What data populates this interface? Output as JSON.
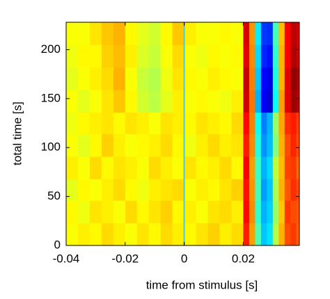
{
  "chart_data": {
    "type": "heatmap",
    "colormap": "jet",
    "clim": [
      0,
      1
    ],
    "xlabel": "time from stimulus [s]",
    "ylabel": "total time [s]",
    "xlim": [
      -0.04,
      0.039
    ],
    "ylim": [
      0,
      228
    ],
    "xticks": [
      -0.04,
      -0.02,
      0,
      0.02
    ],
    "yticks": [
      0,
      50,
      100,
      150,
      200
    ],
    "stimulus_line": {
      "x": 0,
      "color": "#5fd0d8"
    },
    "x_edges": [
      -0.04,
      -0.036,
      -0.032,
      -0.028,
      -0.024,
      -0.02,
      -0.016,
      -0.012,
      -0.008,
      -0.004,
      0,
      0.004,
      0.008,
      0.012,
      0.016,
      0.02,
      0.022,
      0.024,
      0.026,
      0.028,
      0.03,
      0.032,
      0.034,
      0.036,
      0.038,
      0.04
    ],
    "y_edges": [
      0,
      23,
      46,
      68,
      91,
      114,
      136,
      159,
      182,
      205,
      228
    ],
    "z": [
      [
        0.62,
        0.64,
        0.63,
        0.66,
        0.64,
        0.62,
        0.65,
        0.63,
        0.66,
        0.64,
        0.63,
        0.65,
        0.67,
        0.64,
        0.66,
        0.85,
        0.72,
        0.45,
        0.32,
        0.35,
        0.55,
        0.7,
        0.8,
        0.82,
        0.78
      ],
      [
        0.63,
        0.61,
        0.65,
        0.64,
        0.62,
        0.66,
        0.63,
        0.65,
        0.67,
        0.63,
        0.64,
        0.62,
        0.65,
        0.66,
        0.64,
        0.87,
        0.74,
        0.42,
        0.3,
        0.33,
        0.52,
        0.68,
        0.82,
        0.8,
        0.79
      ],
      [
        0.6,
        0.63,
        0.62,
        0.64,
        0.66,
        0.63,
        0.61,
        0.64,
        0.65,
        0.66,
        0.62,
        0.64,
        0.63,
        0.65,
        0.67,
        0.86,
        0.73,
        0.44,
        0.28,
        0.32,
        0.54,
        0.7,
        0.79,
        0.83,
        0.8
      ],
      [
        0.64,
        0.62,
        0.66,
        0.63,
        0.65,
        0.64,
        0.62,
        0.66,
        0.64,
        0.62,
        0.65,
        0.63,
        0.64,
        0.66,
        0.63,
        0.88,
        0.72,
        0.43,
        0.3,
        0.34,
        0.56,
        0.69,
        0.81,
        0.82,
        0.77
      ],
      [
        0.62,
        0.6,
        0.63,
        0.67,
        0.64,
        0.62,
        0.63,
        0.64,
        0.66,
        0.63,
        0.61,
        0.64,
        0.66,
        0.64,
        0.65,
        0.85,
        0.74,
        0.4,
        0.27,
        0.31,
        0.5,
        0.7,
        0.8,
        0.84,
        0.8
      ],
      [
        0.61,
        0.63,
        0.64,
        0.65,
        0.63,
        0.65,
        0.64,
        0.62,
        0.65,
        0.64,
        0.63,
        0.65,
        0.64,
        0.63,
        0.66,
        0.87,
        0.75,
        0.38,
        0.25,
        0.3,
        0.52,
        0.71,
        0.83,
        0.85,
        0.81
      ],
      [
        0.62,
        0.6,
        0.62,
        0.65,
        0.68,
        0.63,
        0.58,
        0.56,
        0.6,
        0.64,
        0.62,
        0.63,
        0.62,
        0.61,
        0.64,
        0.92,
        0.76,
        0.3,
        0.12,
        0.08,
        0.38,
        0.72,
        0.9,
        0.97,
        0.95
      ],
      [
        0.6,
        0.62,
        0.64,
        0.66,
        0.7,
        0.62,
        0.57,
        0.55,
        0.61,
        0.65,
        0.63,
        0.62,
        0.64,
        0.63,
        0.62,
        0.93,
        0.75,
        0.32,
        0.13,
        0.1,
        0.4,
        0.7,
        0.9,
        0.98,
        0.96
      ],
      [
        0.61,
        0.63,
        0.63,
        0.67,
        0.69,
        0.64,
        0.59,
        0.57,
        0.62,
        0.66,
        0.62,
        0.61,
        0.63,
        0.62,
        0.63,
        0.9,
        0.74,
        0.34,
        0.16,
        0.14,
        0.42,
        0.7,
        0.88,
        0.95,
        0.93
      ],
      [
        0.62,
        0.62,
        0.65,
        0.68,
        0.7,
        0.63,
        0.6,
        0.58,
        0.63,
        0.68,
        0.64,
        0.62,
        0.62,
        0.63,
        0.62,
        0.91,
        0.73,
        0.36,
        0.18,
        0.17,
        0.44,
        0.69,
        0.88,
        0.94,
        0.92
      ]
    ]
  }
}
